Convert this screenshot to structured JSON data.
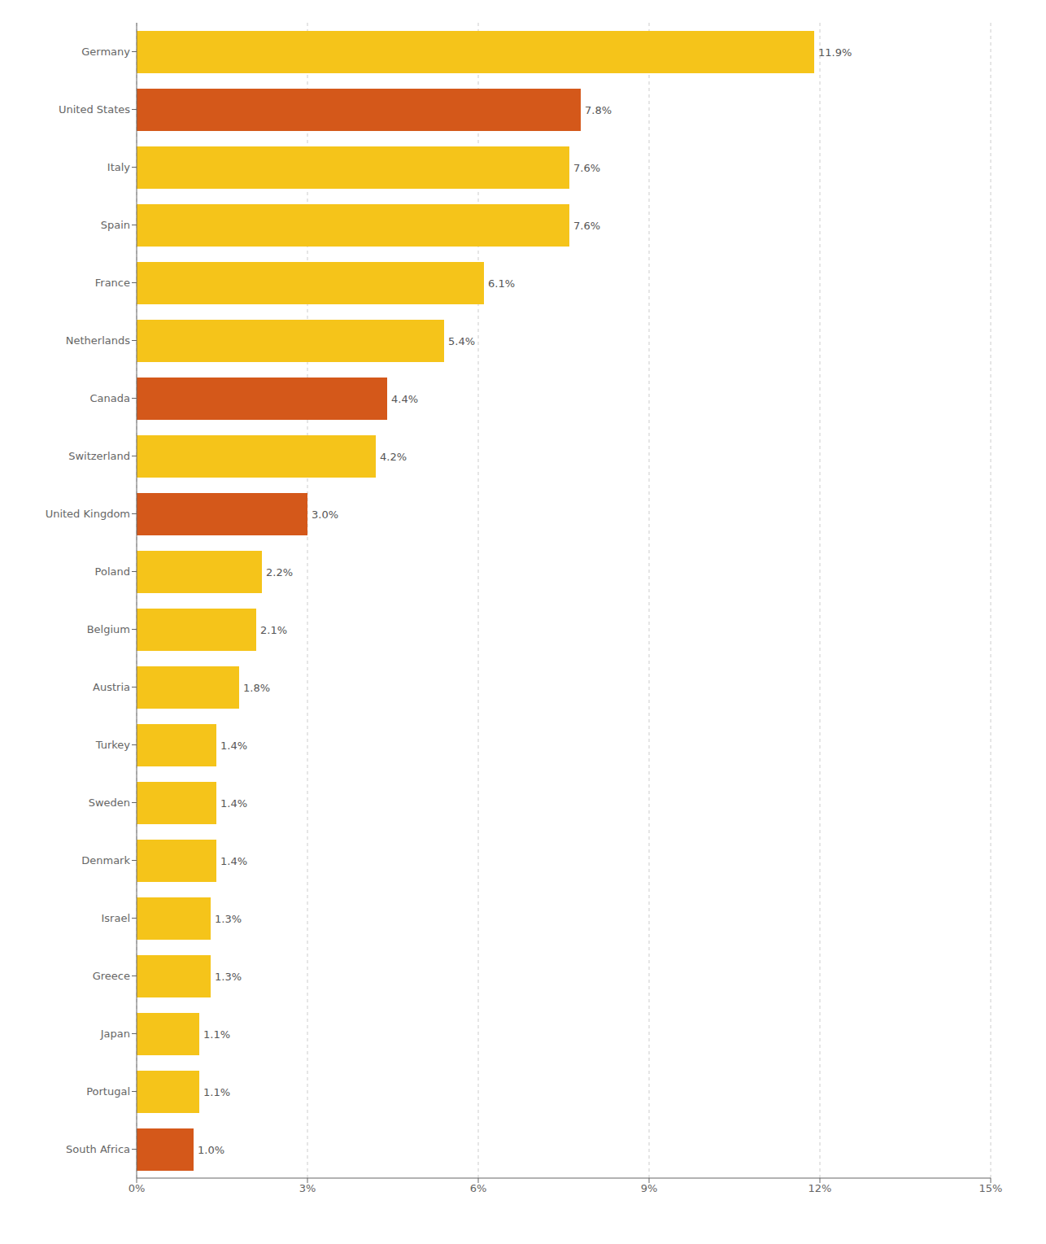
{
  "chart_data": {
    "type": "bar",
    "orientation": "horizontal",
    "categories": [
      "Germany",
      "United States",
      "Italy",
      "Spain",
      "France",
      "Netherlands",
      "Canada",
      "Switzerland",
      "United Kingdom",
      "Poland",
      "Belgium",
      "Austria",
      "Turkey",
      "Sweden",
      "Denmark",
      "Israel",
      "Greece",
      "Japan",
      "Portugal",
      "South Africa"
    ],
    "values": [
      11.9,
      7.8,
      7.6,
      7.6,
      6.1,
      5.4,
      4.4,
      4.2,
      3.0,
      2.2,
      2.1,
      1.8,
      1.4,
      1.4,
      1.4,
      1.3,
      1.3,
      1.1,
      1.1,
      1.0
    ],
    "value_labels": [
      "11.9%",
      "7.8%",
      "7.6%",
      "7.6%",
      "6.1%",
      "5.4%",
      "4.4%",
      "4.2%",
      "3.0%",
      "2.2%",
      "2.1%",
      "1.8%",
      "1.4%",
      "1.4%",
      "1.4%",
      "1.3%",
      "1.3%",
      "1.1%",
      "1.1%",
      "1.0%"
    ],
    "data_labels": true,
    "colors": [
      "#F5C41A",
      "#D4581A",
      "#F5C41A",
      "#F5C41A",
      "#F5C41A",
      "#F5C41A",
      "#D4581A",
      "#F5C41A",
      "#D4581A",
      "#F5C41A",
      "#F5C41A",
      "#F5C41A",
      "#F5C41A",
      "#F5C41A",
      "#F5C41A",
      "#F5C41A",
      "#F5C41A",
      "#F5C41A",
      "#F5C41A",
      "#D4581A"
    ],
    "xlim": [
      0,
      15
    ],
    "xticks": [
      {
        "value": 0,
        "label": "0%"
      },
      {
        "value": 3,
        "label": "3%"
      },
      {
        "value": 6,
        "label": "6%"
      },
      {
        "value": 9,
        "label": "9%"
      },
      {
        "value": 12,
        "label": "12%"
      },
      {
        "value": 15,
        "label": "15%"
      }
    ],
    "grid": true
  }
}
